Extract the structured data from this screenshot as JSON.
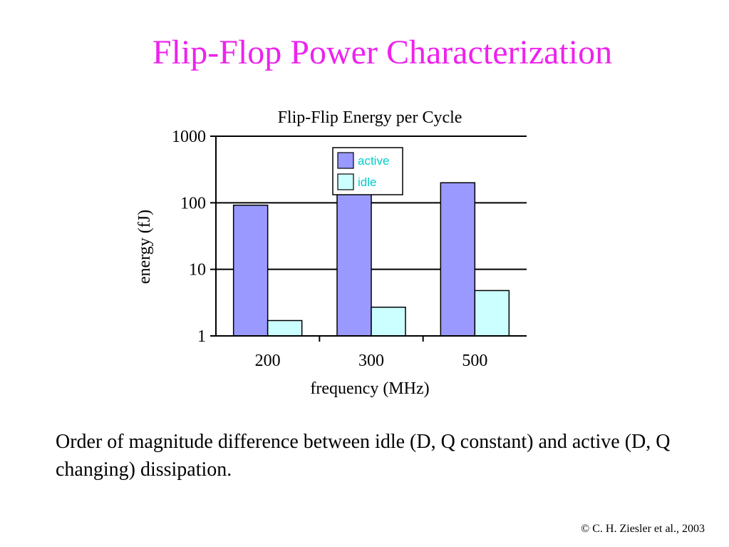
{
  "slide": {
    "title": "Flip-Flop Power Characterization",
    "body_text": "Order of magnitude difference between idle (D, Q constant) and active (D, Q changing) dissipation.",
    "copyright": "© C. H. Ziesler et al., 2003"
  },
  "colors": {
    "title": "#ee22ee",
    "active": "#9999ff",
    "idle": "#ccffff",
    "legend_text": "#00cccc",
    "axis": "#000000"
  },
  "chart_data": {
    "type": "bar",
    "title": "Flip-Flip Energy per Cycle",
    "xlabel": "frequency (MHz)",
    "ylabel": "energy (fJ)",
    "y_scale": "log",
    "ylim": [
      1,
      1000
    ],
    "y_ticks": [
      {
        "value": 1,
        "label": "1"
      },
      {
        "value": 10,
        "label": "10"
      },
      {
        "value": 100,
        "label": "100"
      },
      {
        "value": 1000,
        "label": "1000"
      }
    ],
    "categories": [
      "200",
      "300",
      "500"
    ],
    "series": [
      {
        "name": "active",
        "values": [
          92,
          135,
          200
        ]
      },
      {
        "name": "idle",
        "values": [
          1.7,
          2.7,
          4.8
        ]
      }
    ],
    "grid": "horizontal",
    "legend": "top-center"
  }
}
